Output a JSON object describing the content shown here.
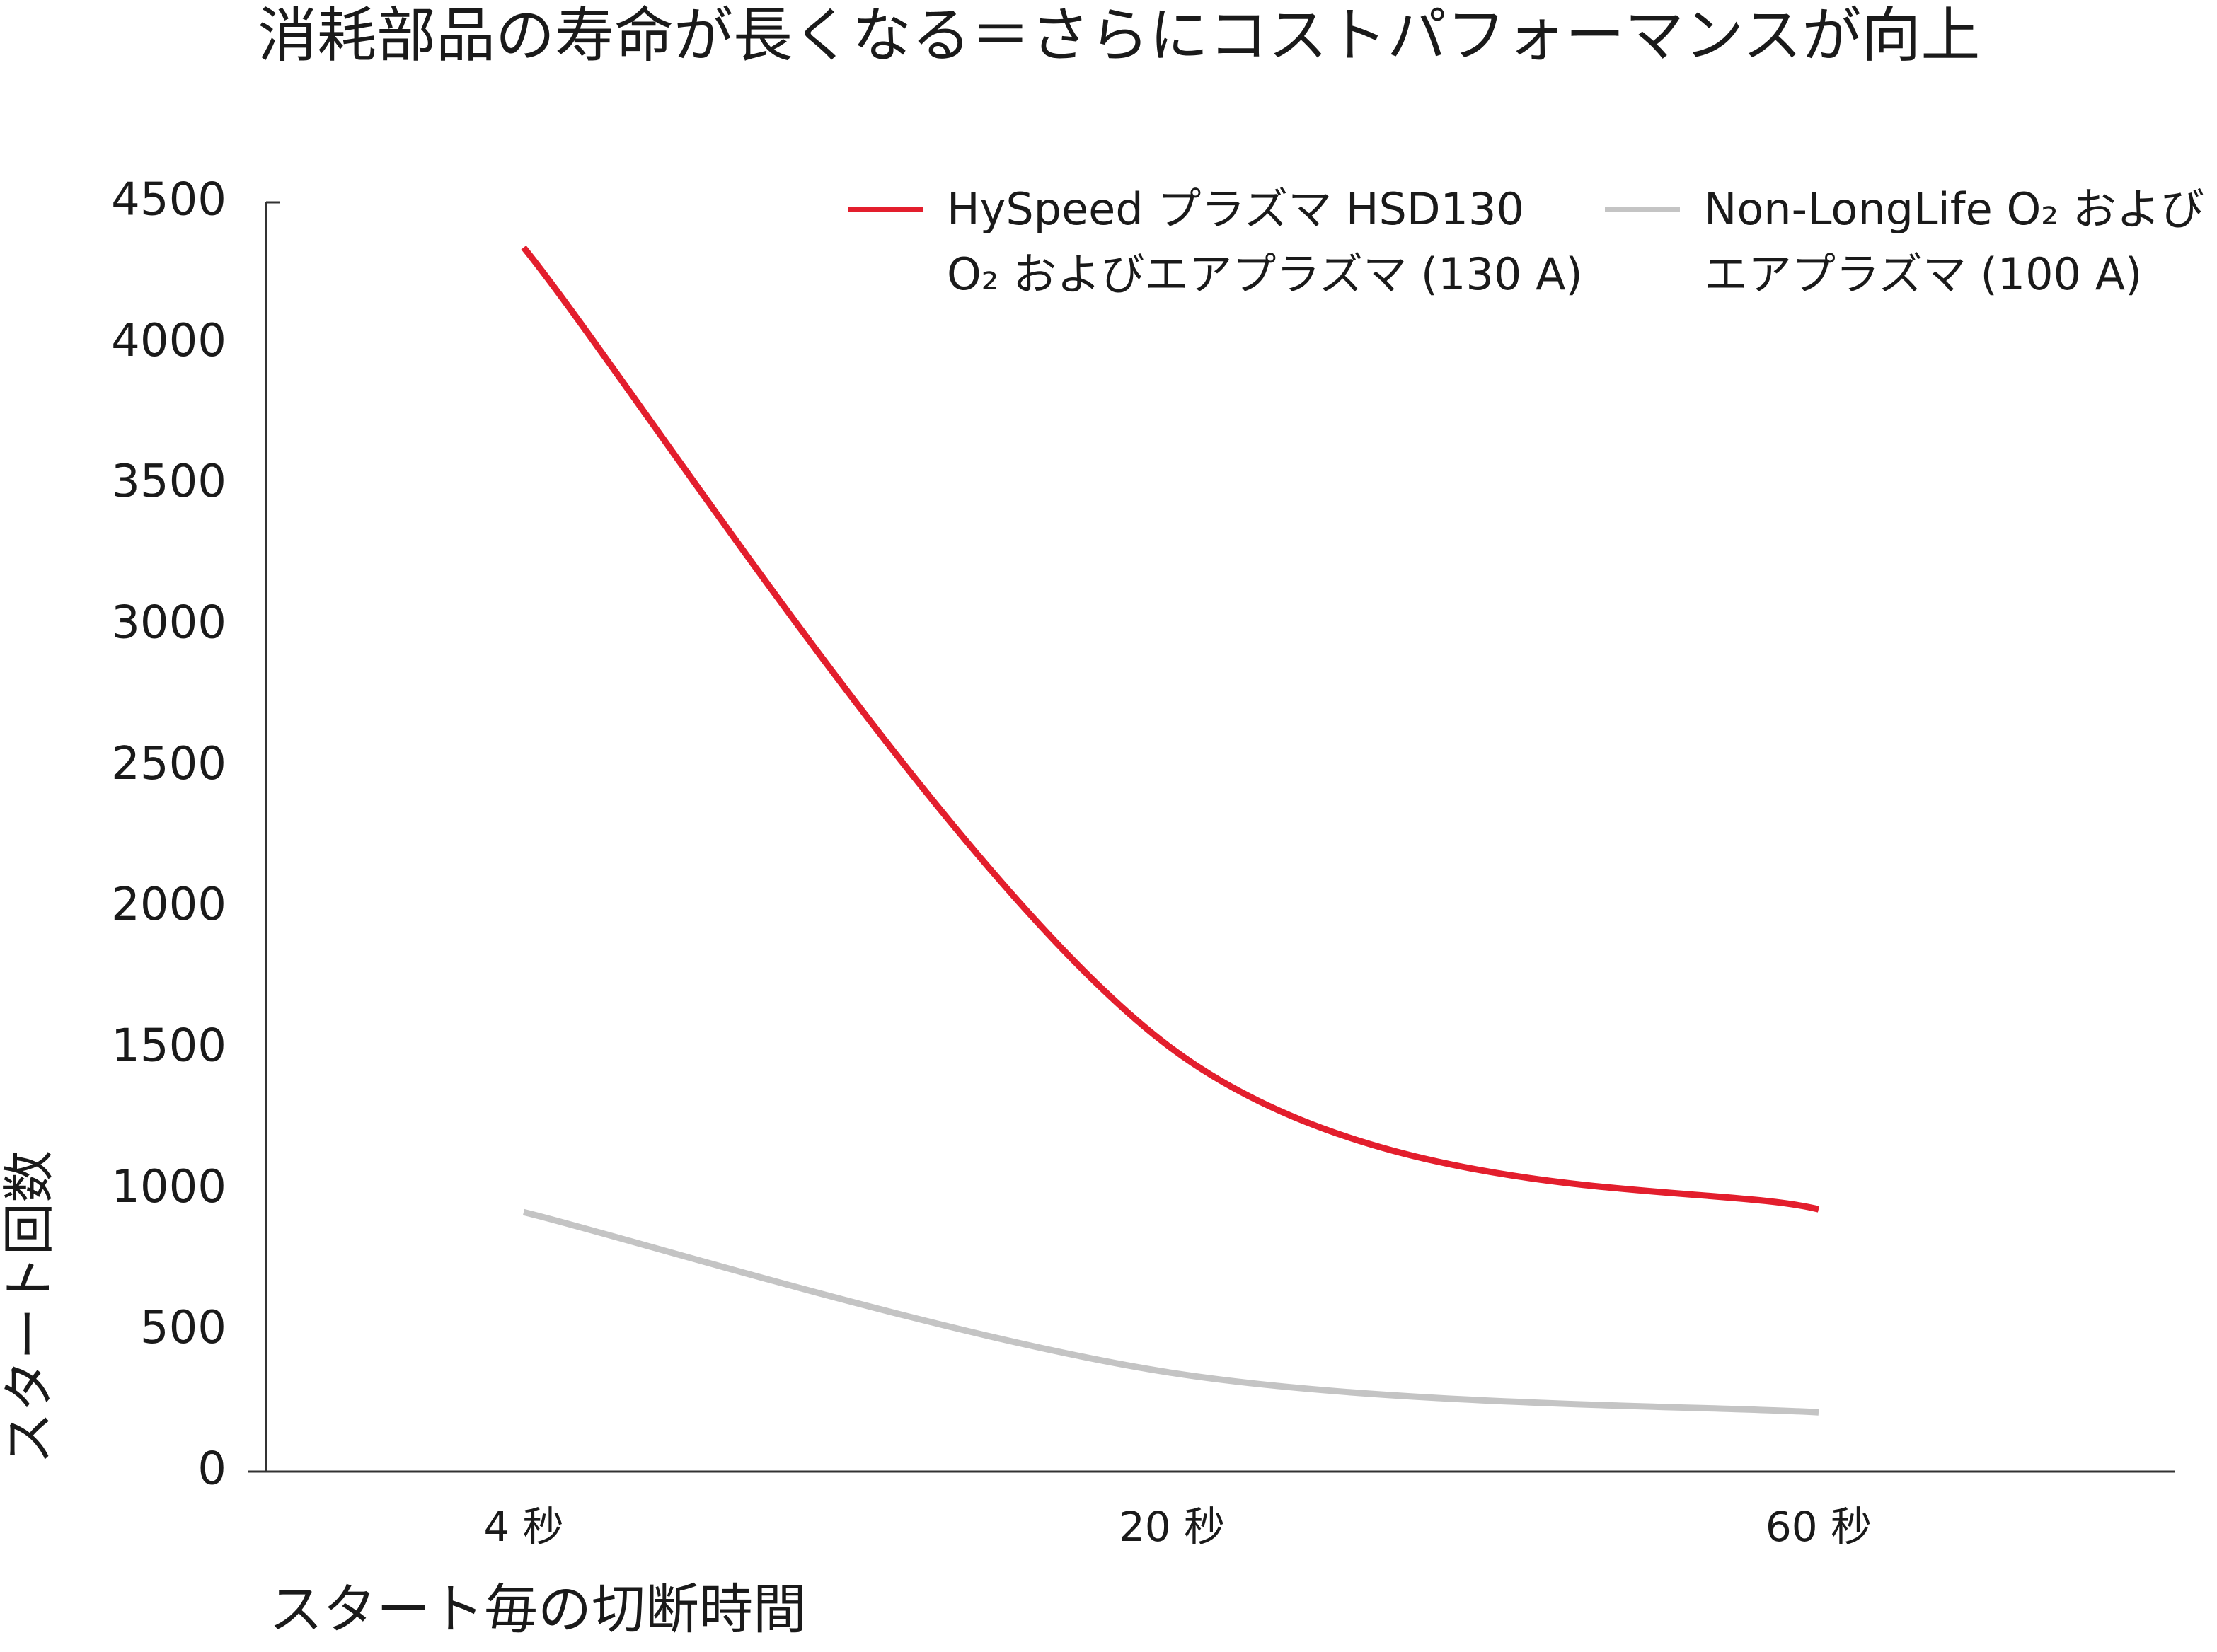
{
  "chart_data": {
    "type": "line",
    "title": "消耗部品の寿命が長くなる＝さらにコストパフォーマンスが向上",
    "x_label": "スタート毎の切断時間",
    "y_label": "スタート回数",
    "categories": [
      "4 秒",
      "20 秒",
      "60 秒"
    ],
    "series": [
      {
        "name": "HySpeed プラズマ HSD130\nO₂ およびエアプラズマ (130 A)",
        "color": "#e31e2d",
        "values": [
          4340,
          1500,
          930
        ]
      },
      {
        "name": "Non-LongLife O₂ および\nエアプラズマ (100 A)",
        "color": "#c4c4c4",
        "values": [
          920,
          350,
          210
        ]
      }
    ],
    "ylim": [
      0,
      4500
    ],
    "yticks": [
      0,
      500,
      1000,
      1500,
      2000,
      2500,
      3000,
      3500,
      4000,
      4500
    ],
    "grid": false
  }
}
